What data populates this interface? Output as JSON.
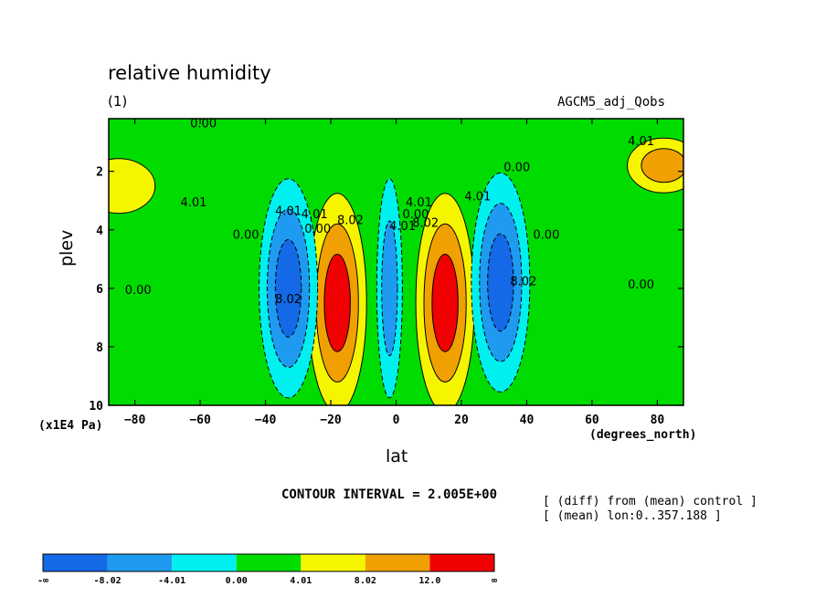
{
  "header": {
    "title": "relative humidity",
    "subtitle": "(1)",
    "run_name": "AGCM5_adj_Qobs"
  },
  "axes": {
    "y_unit_label": "(x1E4 Pa)",
    "x_unit_label": "(degrees_north)"
  },
  "footer": {
    "contour_interval": "CONTOUR INTERVAL = 2.005E+00",
    "note_line1": "[ (diff) from (mean) control ]",
    "note_line2": "[ (mean) lon:0..357.188 ]"
  },
  "colorbar": {
    "colors": [
      "#1469e6",
      "#1e9bf0",
      "#00f0f0",
      "#00dc00",
      "#f5f500",
      "#f0a000",
      "#f00000"
    ],
    "labels": [
      "-∞",
      "-8.02",
      "-4.01",
      "0.00",
      "4.01",
      "8.02",
      "12.0",
      "∞"
    ]
  },
  "chart_data": {
    "type": "contour",
    "xlabel": "lat",
    "ylabel": "plev",
    "xlim": [
      -88,
      88
    ],
    "ylim": [
      10,
      0.2
    ],
    "x_ticks": [
      -80,
      -60,
      -40,
      -20,
      0,
      20,
      40,
      60,
      80
    ],
    "y_ticks": [
      2,
      4,
      6,
      8,
      10
    ],
    "contour_levels": [
      -8.02,
      -4.01,
      0.0,
      4.01,
      8.02,
      12.0
    ],
    "contour_labels": [
      {
        "text": "0.00",
        "lat": -59,
        "plev": 0.5
      },
      {
        "text": "4.01",
        "lat": 75,
        "plev": 1.1
      },
      {
        "text": "4.01",
        "lat": -62,
        "plev": 3.2
      },
      {
        "text": "0.00",
        "lat": -46,
        "plev": 4.3
      },
      {
        "text": "4.01",
        "lat": -33,
        "plev": 3.5
      },
      {
        "text": "8.02",
        "lat": -33,
        "plev": 6.5
      },
      {
        "text": "4.01",
        "lat": -25,
        "plev": 3.6
      },
      {
        "text": "0.00",
        "lat": -24,
        "plev": 4.1
      },
      {
        "text": "8.02",
        "lat": -14,
        "plev": 3.8
      },
      {
        "text": "4.01",
        "lat": 2,
        "plev": 4.0
      },
      {
        "text": "8.02",
        "lat": 9,
        "plev": 3.9
      },
      {
        "text": "4.01",
        "lat": 7,
        "plev": 3.2
      },
      {
        "text": "0.00",
        "lat": 6,
        "plev": 3.6
      },
      {
        "text": "4.01",
        "lat": 25,
        "plev": 3.0
      },
      {
        "text": "0.00",
        "lat": 37,
        "plev": 2.0
      },
      {
        "text": "0.00",
        "lat": 46,
        "plev": 4.3
      },
      {
        "text": "8.02",
        "lat": 39,
        "plev": 5.9
      },
      {
        "text": "0.00",
        "lat": -79,
        "plev": 6.2
      },
      {
        "text": "0.00",
        "lat": 75,
        "plev": 6.0
      }
    ],
    "features": [
      {
        "kind": "maximum",
        "lat": -18,
        "plev": 6.5,
        "max_value": 14.0
      },
      {
        "kind": "maximum",
        "lat": 15,
        "plev": 6.5,
        "max_value": 14.0
      },
      {
        "kind": "minimum",
        "lat": -33,
        "plev": 6.0,
        "min_value": -10.0
      },
      {
        "kind": "minimum",
        "lat": 32,
        "plev": 5.8,
        "min_value": -10.0
      },
      {
        "kind": "minimum",
        "lat": -2,
        "plev": 6.0,
        "min_value": -6.0
      },
      {
        "kind": "maximum",
        "lat": 82,
        "plev": 1.8,
        "max_value": 9.0
      },
      {
        "kind": "maximum",
        "lat": -85,
        "plev": 2.5,
        "max_value": 5.0
      }
    ]
  }
}
